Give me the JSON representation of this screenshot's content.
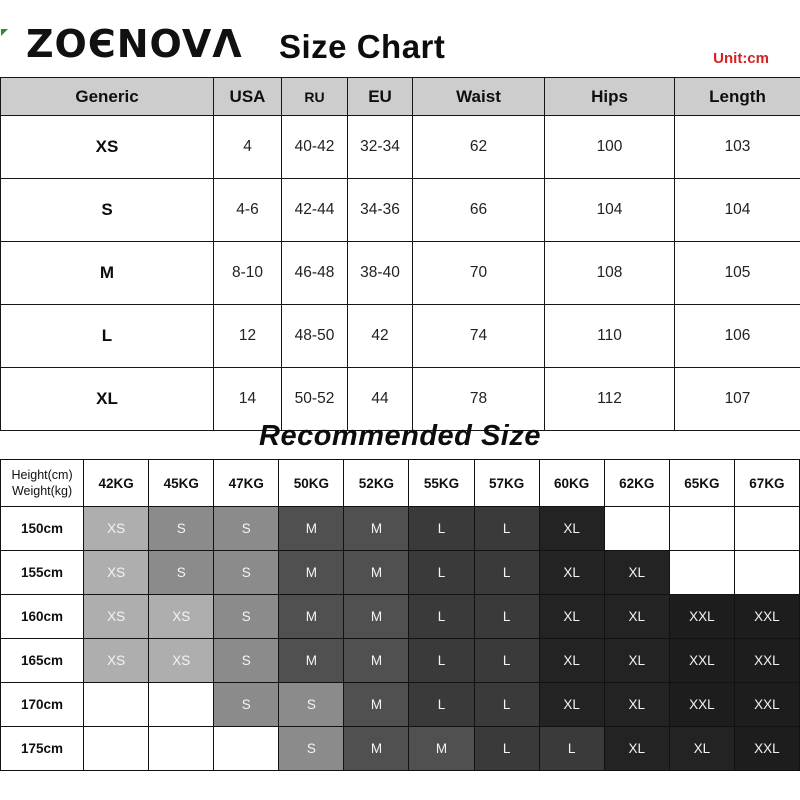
{
  "header": {
    "logo": "ZOENOVA",
    "logo_display": "ZOЄNOVΛ",
    "title": "Size Chart",
    "unit_label": "Unit:cm"
  },
  "size_table": {
    "columns": [
      "Generic",
      "USA",
      "RU",
      "EU",
      "Waist",
      "Hips",
      "Length"
    ],
    "rows": [
      [
        "XS",
        "4",
        "40-42",
        "32-34",
        "62",
        "100",
        "103"
      ],
      [
        "S",
        "4-6",
        "42-44",
        "34-36",
        "66",
        "104",
        "104"
      ],
      [
        "M",
        "8-10",
        "46-48",
        "38-40",
        "70",
        "108",
        "105"
      ],
      [
        "L",
        "12",
        "48-50",
        "42",
        "74",
        "110",
        "106"
      ],
      [
        "XL",
        "14",
        "50-52",
        "44",
        "78",
        "112",
        "107"
      ]
    ]
  },
  "recommended_table": {
    "title": "Recommended Size",
    "corner": {
      "line1": "Height(cm)",
      "line2": "Weight(kg)"
    },
    "weight_columns": [
      "42KG",
      "45KG",
      "47KG",
      "50KG",
      "52KG",
      "55KG",
      "57KG",
      "60KG",
      "62KG",
      "65KG",
      "67KG"
    ],
    "rows": [
      {
        "height": "150cm",
        "cells": [
          "XS",
          "S",
          "S",
          "M",
          "M",
          "L",
          "L",
          "XL",
          "",
          "",
          ""
        ]
      },
      {
        "height": "155cm",
        "cells": [
          "XS",
          "S",
          "S",
          "M",
          "M",
          "L",
          "L",
          "XL",
          "XL",
          "",
          ""
        ]
      },
      {
        "height": "160cm",
        "cells": [
          "XS",
          "XS",
          "S",
          "M",
          "M",
          "L",
          "L",
          "XL",
          "XL",
          "XXL",
          "XXL"
        ]
      },
      {
        "height": "165cm",
        "cells": [
          "XS",
          "XS",
          "S",
          "M",
          "M",
          "L",
          "L",
          "XL",
          "XL",
          "XXL",
          "XXL"
        ]
      },
      {
        "height": "170cm",
        "cells": [
          "",
          "",
          "S",
          "S",
          "M",
          "L",
          "L",
          "XL",
          "XL",
          "XXL",
          "XXL"
        ]
      },
      {
        "height": "175cm",
        "cells": [
          "",
          "",
          "",
          "S",
          "M",
          "M",
          "L",
          "L",
          "XL",
          "XL",
          "XXL"
        ]
      }
    ]
  },
  "colors": {
    "unit_red": "#d42222",
    "header_gray": "#cdcdcd",
    "mark_green": "#2e8b3a",
    "cell_text": "#f4f4f4",
    "size_fill": {
      "XS": "#aeaeae",
      "S": "#8b8b8b",
      "M": "#505050",
      "L": "#3a3a3a",
      "XL": "#232323",
      "XXL": "#1d1d1d"
    }
  }
}
